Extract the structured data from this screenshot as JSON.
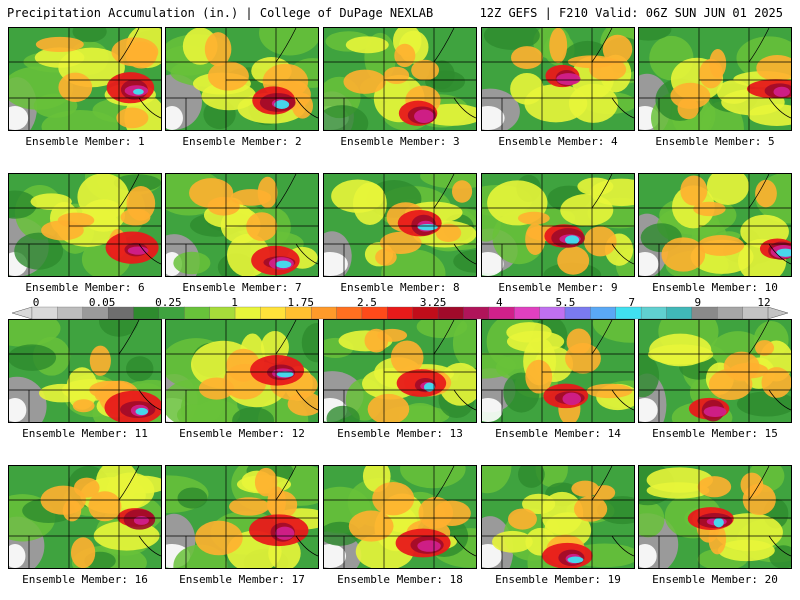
{
  "header": {
    "title": "Precipitation Accumulation (in.) | College of DuPage NEXLAB",
    "run_info": "12Z GEFS | F210 Valid: 06Z SUN JUN 01 2025"
  },
  "members": [
    "Ensemble Member: 1",
    "Ensemble Member: 2",
    "Ensemble Member: 3",
    "Ensemble Member: 4",
    "Ensemble Member: 5",
    "Ensemble Member: 6",
    "Ensemble Member: 7",
    "Ensemble Member: 8",
    "Ensemble Member: 9",
    "Ensemble Member: 10",
    "Ensemble Member: 11",
    "Ensemble Member: 12",
    "Ensemble Member: 13",
    "Ensemble Member: 14",
    "Ensemble Member: 15",
    "Ensemble Member: 16",
    "Ensemble Member: 17",
    "Ensemble Member: 18",
    "Ensemble Member: 19",
    "Ensemble Member: 20"
  ],
  "colorbar": {
    "labels": [
      "0",
      "0.05",
      "0.25",
      "1",
      "1.75",
      "2.5",
      "3.25",
      "4",
      "5.5",
      "7",
      "9",
      "12"
    ],
    "colors": [
      "#d9d9d9",
      "#bdbdbd",
      "#9a9a9a",
      "#6e6e6e",
      "#2e8b2e",
      "#3fa33f",
      "#68c23a",
      "#a6dc3a",
      "#e8f53a",
      "#ffe23a",
      "#ffc030",
      "#ff9a2a",
      "#ff7020",
      "#ff4a1a",
      "#e81a1a",
      "#c00d1a",
      "#a00a2a",
      "#b0145a",
      "#d0208a",
      "#e040c0",
      "#c070f0",
      "#7a7af0",
      "#5aa8f5",
      "#40e0f0",
      "#60d0d0",
      "#40b8b8",
      "#8a8a8a",
      "#a6a6a6",
      "#c4c4c4"
    ]
  },
  "palette": {
    "grey": "#9a9a9a",
    "green_dark": "#2e8b2e",
    "green": "#3fa33f",
    "green_light": "#68c23a",
    "yellow": "#e8f53a",
    "orange": "#ffb030",
    "red": "#e81a1a",
    "darkred": "#a00a2a",
    "magenta": "#d0208a",
    "cyan": "#40e0f0",
    "white": "#ffffff"
  }
}
